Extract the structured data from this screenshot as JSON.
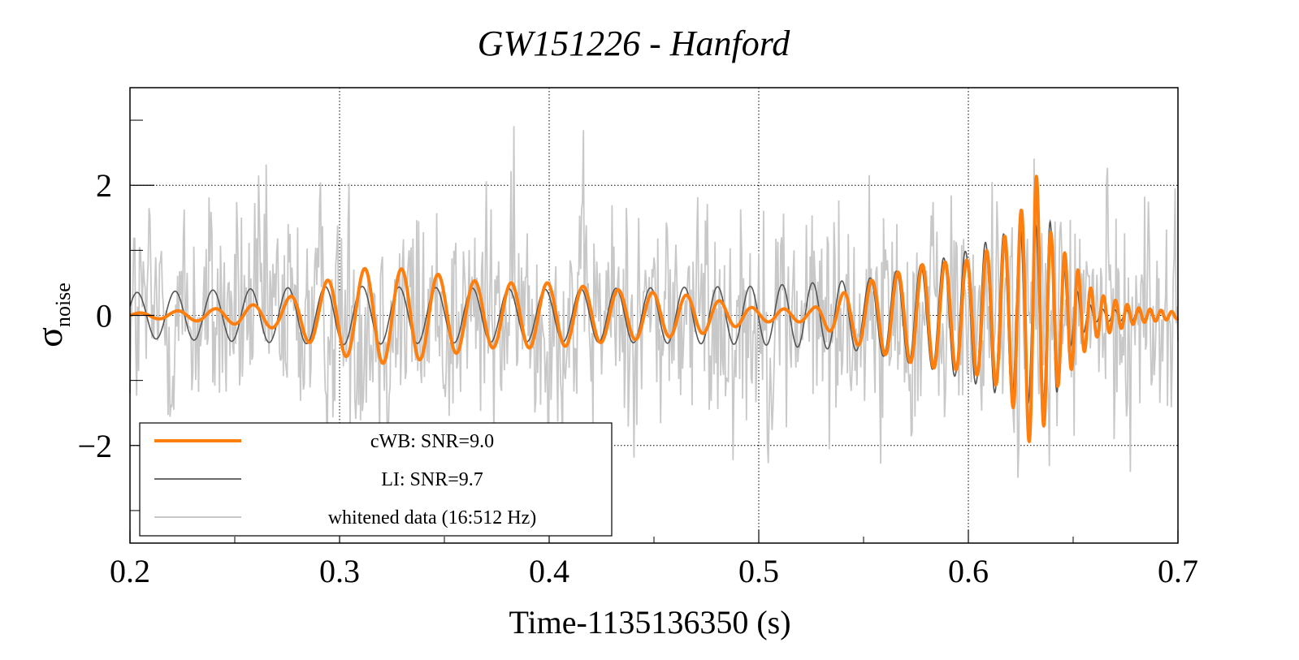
{
  "chart_data": {
    "type": "line",
    "title": "GW151226 - Hanford",
    "xlabel": "Time-1135136350 (s)",
    "ylabel": "σ",
    "ylabel_subscript": "noise",
    "xlim": [
      0.2,
      0.7
    ],
    "ylim": [
      -3.5,
      3.5
    ],
    "xticks": [
      0.2,
      0.3,
      0.4,
      0.5,
      0.6,
      0.7
    ],
    "xtick_labels": [
      "0.2",
      "0.3",
      "0.4",
      "0.5",
      "0.6",
      "0.7"
    ],
    "yticks": [
      -2,
      0,
      2
    ],
    "ytick_labels": [
      "−2",
      "0",
      "2"
    ],
    "grid": true,
    "legend_position": "bottom-left",
    "colors": {
      "cwb": "#ff7f0e",
      "li": "#555555",
      "whitened": "#c8c8c8"
    },
    "series": [
      {
        "name": "cWB: SNR=9.0",
        "key": "cwb",
        "envelope": [
          {
            "x": 0.2,
            "a": 0.03
          },
          {
            "x": 0.24,
            "a": 0.1
          },
          {
            "x": 0.27,
            "a": 0.2
          },
          {
            "x": 0.295,
            "a": 0.55
          },
          {
            "x": 0.315,
            "a": 0.75
          },
          {
            "x": 0.335,
            "a": 0.7
          },
          {
            "x": 0.37,
            "a": 0.5
          },
          {
            "x": 0.4,
            "a": 0.5
          },
          {
            "x": 0.43,
            "a": 0.4
          },
          {
            "x": 0.47,
            "a": 0.3
          },
          {
            "x": 0.5,
            "a": 0.1
          },
          {
            "x": 0.525,
            "a": 0.1
          },
          {
            "x": 0.55,
            "a": 0.5
          },
          {
            "x": 0.58,
            "a": 0.8
          },
          {
            "x": 0.6,
            "a": 0.85
          },
          {
            "x": 0.615,
            "a": 1.1
          },
          {
            "x": 0.625,
            "a": 1.6
          },
          {
            "x": 0.632,
            "a": 2.2
          },
          {
            "x": 0.64,
            "a": 1.2
          },
          {
            "x": 0.65,
            "a": 0.8
          },
          {
            "x": 0.66,
            "a": 0.35
          },
          {
            "x": 0.68,
            "a": 0.12
          },
          {
            "x": 0.7,
            "a": 0.05
          }
        ]
      },
      {
        "name": "LI: SNR=9.7",
        "key": "li",
        "envelope": [
          {
            "x": 0.2,
            "a": 0.35
          },
          {
            "x": 0.3,
            "a": 0.45
          },
          {
            "x": 0.4,
            "a": 0.4
          },
          {
            "x": 0.5,
            "a": 0.45
          },
          {
            "x": 0.55,
            "a": 0.55
          },
          {
            "x": 0.58,
            "a": 0.8
          },
          {
            "x": 0.6,
            "a": 1.0
          },
          {
            "x": 0.62,
            "a": 1.3
          },
          {
            "x": 0.64,
            "a": 1.45
          },
          {
            "x": 0.648,
            "a": 0.5
          },
          {
            "x": 0.66,
            "a": 0.1
          },
          {
            "x": 0.7,
            "a": 0.05
          }
        ]
      },
      {
        "name": "whitened data (16:512 Hz)",
        "key": "whitened",
        "amplitude": 1.6
      }
    ],
    "frequency_evolution": [
      {
        "x": 0.2,
        "f": 55
      },
      {
        "x": 0.4,
        "f": 58
      },
      {
        "x": 0.5,
        "f": 65
      },
      {
        "x": 0.55,
        "f": 75
      },
      {
        "x": 0.6,
        "f": 100
      },
      {
        "x": 0.64,
        "f": 150
      },
      {
        "x": 0.7,
        "f": 200
      }
    ]
  },
  "legend": {
    "items": [
      {
        "label": "cWB: SNR=9.0"
      },
      {
        "label": "LI: SNR=9.7"
      },
      {
        "label": "whitened data (16:512 Hz)"
      }
    ]
  }
}
